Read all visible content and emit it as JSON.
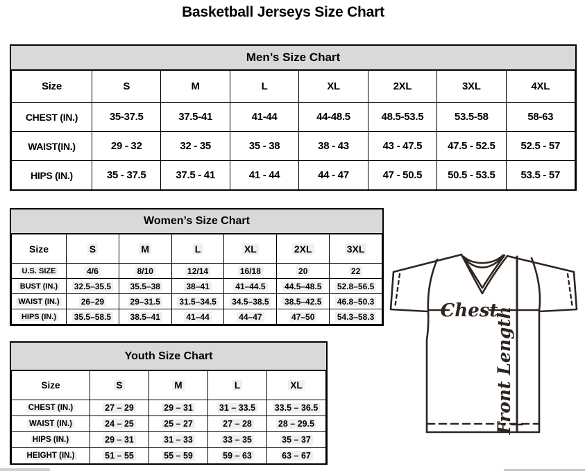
{
  "page": {
    "title": "Basketball Jerseys Size Chart"
  },
  "tables": [
    {
      "id": "mens",
      "title": "Men’s Size Chart",
      "header": [
        "Size",
        "S",
        "M",
        "L",
        "XL",
        "2XL",
        "3XL",
        "4XL"
      ],
      "rows": [
        {
          "label": "CHEST (IN.)",
          "values": [
            "35-37.5",
            "37.5-41",
            "41-44",
            "44-48.5",
            "48.5-53.5",
            "53.5-58",
            "58-63"
          ]
        },
        {
          "label": "WAIST(IN.)",
          "values": [
            "29 - 32",
            "32 - 35",
            "35 - 38",
            "38 - 43",
            "43 - 47.5",
            "47.5 - 52.5",
            "52.5 - 57"
          ]
        },
        {
          "label": "HIPS (IN.)",
          "values": [
            "35 - 37.5",
            "37.5 - 41",
            "41 - 44",
            "44 - 47",
            "47 - 50.5",
            "50.5 - 53.5",
            "53.5 - 57"
          ]
        }
      ]
    },
    {
      "id": "womens",
      "title": "Women’s Size Chart",
      "header": [
        "Size",
        "S",
        "M",
        "L",
        "XL",
        "2XL",
        "3XL"
      ],
      "rows": [
        {
          "label": "U.S. SIZE",
          "values": [
            "4/6",
            "8/10",
            "12/14",
            "16/18",
            "20",
            "22"
          ]
        },
        {
          "label": "BUST (IN.)",
          "values": [
            "32.5–35.5",
            "35.5–38",
            "38–41",
            "41–44.5",
            "44.5–48.5",
            "52.8–56.5"
          ]
        },
        {
          "label": "WAIST (IN.)",
          "values": [
            "26–29",
            "29–31.5",
            "31.5–34.5",
            "34.5–38.5",
            "38.5–42.5",
            "46.8–50.3"
          ]
        },
        {
          "label": "HIPS (IN.)",
          "values": [
            "35.5–58.5",
            "38.5–41",
            "41–44",
            "44–47",
            "47–50",
            "54.3–58.3"
          ]
        }
      ]
    },
    {
      "id": "youth",
      "title": "Youth Size Chart",
      "header": [
        "Size",
        "S",
        "M",
        "L",
        "XL"
      ],
      "rows": [
        {
          "label": "CHEST (IN.)",
          "values": [
            "27 – 29",
            "29 – 31",
            "31 – 33.5",
            "33.5 – 36.5"
          ]
        },
        {
          "label": "WAIST (IN.)",
          "values": [
            "24 – 25",
            "25 – 27",
            "27 – 28",
            "28 – 29.5"
          ]
        },
        {
          "label": "HIPS (IN.)",
          "values": [
            "29 – 31",
            "31 – 33",
            "33 – 35",
            "35 – 37"
          ]
        },
        {
          "label": "HEIGHT (IN.)",
          "values": [
            "51 – 55",
            "55 – 59",
            "59 – 63",
            "63 – 67"
          ]
        }
      ]
    }
  ],
  "diagram": {
    "chest_label": "Chest",
    "front_length_label": "Front Length"
  },
  "colors": {
    "band_background": "#d9d9d9",
    "table_border": "#000000",
    "cell_highlight": "#efefef",
    "jersey_line": "#2e2420"
  }
}
